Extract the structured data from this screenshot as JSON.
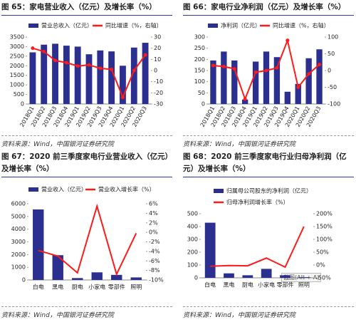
{
  "chart_data": [
    {
      "type": "bar_line",
      "title": "图 65：家电营业收入（亿元）及增长率（%）",
      "source": "资料来源：Wind，中国银河证券研究院",
      "categories": [
        "2018Q1",
        "2018Q2",
        "2018Q3",
        "2018Q4",
        "2019Q1",
        "2019Q2",
        "2019Q3",
        "2019Q4",
        "2020Q1",
        "2020Q2",
        "2020Q3"
      ],
      "series": [
        {
          "name": "营业总收入（亿元）",
          "color": "#2b2f8f",
          "values": [
            2700,
            3100,
            3150,
            3050,
            3000,
            2600,
            2800,
            2750,
            2000,
            2950,
            3200
          ]
        },
        {
          "name": "同比增速（%，右轴）",
          "color": "#ff1a1a",
          "axis": "y2",
          "values": [
            20,
            17,
            9,
            7,
            4,
            5,
            2,
            1,
            -24,
            0,
            14
          ]
        }
      ],
      "ylim": [
        0,
        3500
      ],
      "yticks": [
        0,
        500,
        1000,
        1500,
        2000,
        2500,
        3000,
        3500
      ],
      "y2lim": [
        -30,
        30
      ],
      "y2ticks": [
        -30,
        -20,
        -10,
        0,
        10,
        20,
        30
      ]
    },
    {
      "type": "bar_line",
      "title": "图 66：家电行业净利润（亿元）及增长率（%）",
      "source": "资料来源：Wind，中国银河证券研究院",
      "categories": [
        "2018Q1",
        "2018Q2",
        "2018Q3",
        "2018Q4",
        "2019Q1",
        "2019Q2",
        "2019Q3",
        "2019Q4",
        "2020Q1",
        "2020Q2",
        "2020Q3"
      ],
      "series": [
        {
          "name": "净利润（亿元）",
          "color": "#2b2f8f",
          "values": [
            195,
            235,
            195,
            20,
            190,
            235,
            210,
            55,
            90,
            205,
            245
          ]
        },
        {
          "name": "同比增速（%，右轴）",
          "color": "#ff1a1a",
          "axis": "y2",
          "values": [
            15,
            12,
            5,
            -85,
            -5,
            0,
            8,
            90,
            -50,
            -10,
            18
          ]
        }
      ],
      "ylim": [
        0,
        300
      ],
      "yticks": [
        0,
        50,
        100,
        150,
        200,
        250,
        300
      ],
      "y2lim": [
        -100,
        100
      ],
      "y2ticks": [
        -100,
        -50,
        0,
        50,
        100
      ]
    },
    {
      "type": "bar_line",
      "title": "图 67：2020 前三季度家电行业营业收入（亿元）及增长率（%）",
      "source": "资料来源：Wind，中国银河证券研究院",
      "categories": [
        "白电",
        "黑电",
        "厨电",
        "小家电",
        "零部件",
        "照明"
      ],
      "series": [
        {
          "name": "营业收入（亿元）",
          "color": "#2b2f8f",
          "values": [
            5550,
            1950,
            150,
            600,
            400,
            200
          ]
        },
        {
          "name": "营业收入增长率（%）",
          "color": "#ff1a1a",
          "axis": "y2",
          "values": [
            -3.8,
            -5,
            -8.5,
            5.5,
            -8.8,
            -0.2
          ]
        }
      ],
      "ylim": [
        0,
        6000
      ],
      "yticks": [
        0,
        1000,
        2000,
        3000,
        4000,
        5000,
        6000
      ],
      "y2lim": [
        -10,
        6
      ],
      "y2ticks": [
        {
          "value": -10,
          "label": "-10%"
        },
        {
          "value": -8,
          "label": "-8%"
        },
        {
          "value": -6,
          "label": "-6%"
        },
        {
          "value": -4,
          "label": "-4%"
        },
        {
          "value": -2,
          "label": "-2%"
        },
        {
          "value": 0,
          "label": "0%"
        },
        {
          "value": 2,
          "label": "2%"
        },
        {
          "value": 4,
          "label": "4%"
        },
        {
          "value": 6,
          "label": "6%"
        }
      ]
    },
    {
      "type": "bar_line",
      "title": "图 68：2020 前三季度家电行业归母净利润（亿元）及增长率（%）",
      "source": "资料来源：Wind，中国银河证券研究院",
      "overlay_text": "截图(Alt + A)",
      "categories": [
        "白电",
        "黑电",
        "厨电",
        "小家电",
        "零部件",
        "照明"
      ],
      "series": [
        {
          "name": "归属母公司股东的净利润（亿元）",
          "color": "#2b2f8f",
          "values": [
            430,
            35,
            20,
            70,
            20,
            5
          ]
        },
        {
          "name": "归母净利润增长率（%）",
          "color": "#ff1a1a",
          "axis": "y2",
          "values": [
            -5,
            -2,
            -3,
            27,
            -8,
            150
          ]
        }
      ],
      "ylim": [
        0,
        500
      ],
      "yticks": [
        0,
        100,
        200,
        300,
        400,
        500
      ],
      "y2lim": [
        -50,
        200
      ],
      "y2ticks": [
        {
          "value": -50,
          "label": "-50%"
        },
        {
          "value": 0,
          "label": "0%"
        },
        {
          "value": 50,
          "label": "50%"
        },
        {
          "value": 100,
          "label": "100%"
        },
        {
          "value": 150,
          "label": "150%"
        },
        {
          "value": 200,
          "label": "200%"
        }
      ]
    }
  ]
}
